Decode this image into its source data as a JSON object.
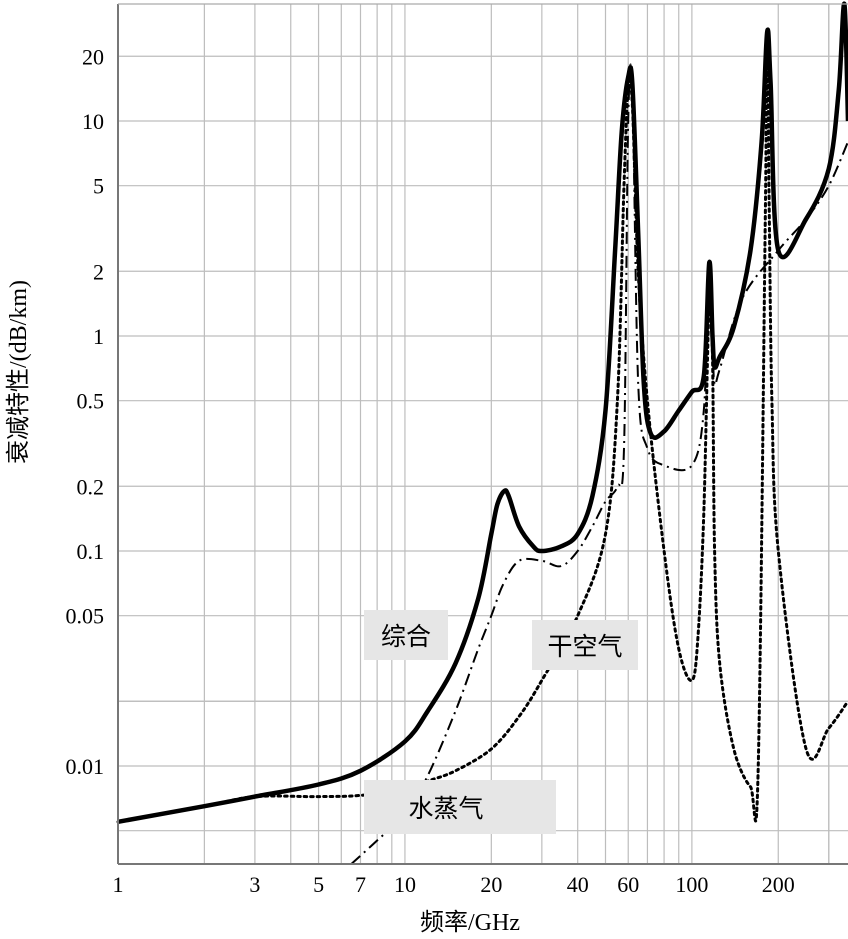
{
  "chart_data": {
    "type": "line",
    "xlabel": "频率/GHz",
    "ylabel": "衰减特性/(dB/km)",
    "x_scale": "log",
    "y_scale": "log",
    "xlim": [
      1,
      350
    ],
    "ylim": [
      0.0035,
      35
    ],
    "x_ticks": [
      "1",
      "3",
      "5",
      "7",
      "10",
      "20",
      "40",
      "60",
      "100",
      "200"
    ],
    "y_ticks": [
      "20",
      "10",
      "5",
      "2",
      "1",
      "0.5",
      "0.2",
      "0.1",
      "0.05",
      "0.01"
    ],
    "grid": true,
    "series": [
      {
        "name": "综合",
        "style": "solid",
        "x": [
          1,
          2,
          3,
          5,
          7,
          10,
          12,
          15,
          18,
          20,
          21,
          22.2,
          23,
          25,
          28,
          30,
          35,
          40,
          45,
          50,
          54,
          57,
          60,
          62,
          65,
          68,
          72,
          80,
          90,
          100,
          110,
          115,
          118,
          120,
          125,
          140,
          160,
          175,
          183,
          188,
          200,
          250,
          300,
          325,
          340,
          350
        ],
        "y": [
          0.0055,
          0.0065,
          0.0072,
          0.0082,
          0.0095,
          0.013,
          0.018,
          0.03,
          0.06,
          0.12,
          0.165,
          0.19,
          0.18,
          0.13,
          0.105,
          0.1,
          0.105,
          0.12,
          0.18,
          0.45,
          2.5,
          9,
          16,
          15,
          3,
          0.6,
          0.35,
          0.36,
          0.45,
          0.55,
          0.65,
          2.2,
          1.0,
          0.72,
          0.8,
          1.1,
          2.5,
          8,
          26,
          15,
          2.5,
          3.5,
          6,
          14,
          35,
          10
        ]
      },
      {
        "name": "干空气",
        "style": "dash-dot",
        "x": [
          6.5,
          8,
          10,
          12,
          15,
          18,
          20,
          22,
          25,
          30,
          35,
          40,
          45,
          50,
          55,
          58,
          60,
          62,
          65,
          70,
          80,
          100,
          110,
          115,
          118,
          120,
          125,
          150,
          200,
          250,
          300,
          350
        ],
        "y": [
          0.0035,
          0.0045,
          0.006,
          0.009,
          0.018,
          0.035,
          0.05,
          0.07,
          0.09,
          0.09,
          0.085,
          0.1,
          0.13,
          0.17,
          0.2,
          0.3,
          10,
          14,
          0.6,
          0.3,
          0.25,
          0.25,
          0.45,
          2.0,
          0.9,
          0.6,
          0.7,
          1.5,
          2.5,
          3.5,
          5,
          8
        ]
      },
      {
        "name": "水蒸气",
        "style": "dotted",
        "x": [
          1,
          2,
          3,
          5,
          7,
          10,
          12,
          15,
          20,
          25,
          30,
          40,
          50,
          55,
          58,
          60,
          62,
          65,
          70,
          80,
          90,
          100,
          105,
          110,
          115,
          118,
          120,
          125,
          140,
          160,
          170,
          180,
          183,
          186,
          190,
          200,
          250,
          300,
          350
        ],
        "y": [
          0.0055,
          0.0065,
          0.0072,
          0.0072,
          0.0073,
          0.0078,
          0.0085,
          0.0095,
          0.012,
          0.017,
          0.025,
          0.05,
          0.12,
          0.5,
          5,
          14,
          12,
          2,
          0.5,
          0.1,
          0.035,
          0.025,
          0.04,
          0.15,
          1.5,
          0.8,
          0.1,
          0.03,
          0.012,
          0.008,
          0.009,
          3,
          25,
          4,
          0.5,
          0.1,
          0.012,
          0.015,
          0.02
        ]
      }
    ],
    "annotations": [
      "综合",
      "干空气",
      "水蒸气"
    ]
  }
}
